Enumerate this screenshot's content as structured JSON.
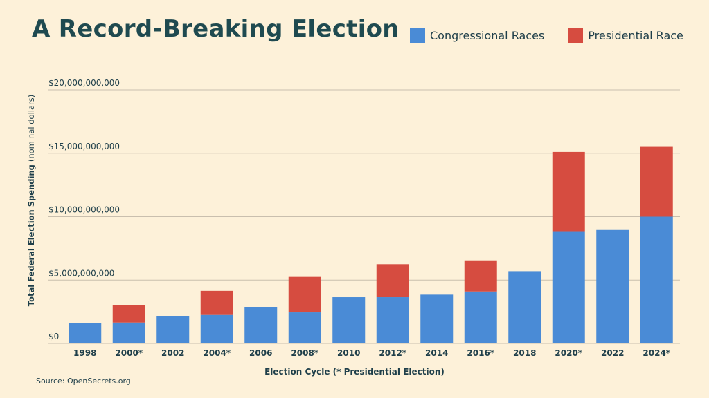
{
  "chart_data": {
    "type": "bar",
    "stacked": true,
    "title": "A Record-Breaking Election",
    "xlabel": "Election Cycle (* Presidential Election)",
    "ylabel_bold": "Total Federal Election Spending",
    "ylabel_light": "(nominal dollars)",
    "source": "Source: OpenSecrets.org",
    "categories": [
      "1998",
      "2000*",
      "2002",
      "2004*",
      "2006",
      "2008*",
      "2010",
      "2012*",
      "2014",
      "2016*",
      "2018",
      "2020*",
      "2022",
      "2024*"
    ],
    "series": [
      {
        "name": "Congressional Races",
        "color": "#4a8bd6",
        "values": [
          1600000000,
          1650000000,
          2150000000,
          2250000000,
          2850000000,
          2450000000,
          3650000000,
          3650000000,
          3850000000,
          4100000000,
          5700000000,
          8800000000,
          8950000000,
          10000000000
        ]
      },
      {
        "name": "Presidential Race",
        "color": "#d64c40",
        "values": [
          0,
          1400000000,
          0,
          1900000000,
          0,
          2800000000,
          0,
          2600000000,
          0,
          2400000000,
          0,
          6300000000,
          0,
          5500000000
        ]
      }
    ],
    "yticks": [
      {
        "value": 0,
        "label": "$0"
      },
      {
        "value": 5000000000,
        "label": "$5,000,000,000"
      },
      {
        "value": 10000000000,
        "label": "$10,000,000,000"
      },
      {
        "value": 15000000000,
        "label": "$15,000,000,000"
      },
      {
        "value": 20000000000,
        "label": "$20,000,000,000"
      }
    ],
    "ylim": [
      0,
      20000000000
    ],
    "grid": true,
    "legend_position": "top-right"
  }
}
